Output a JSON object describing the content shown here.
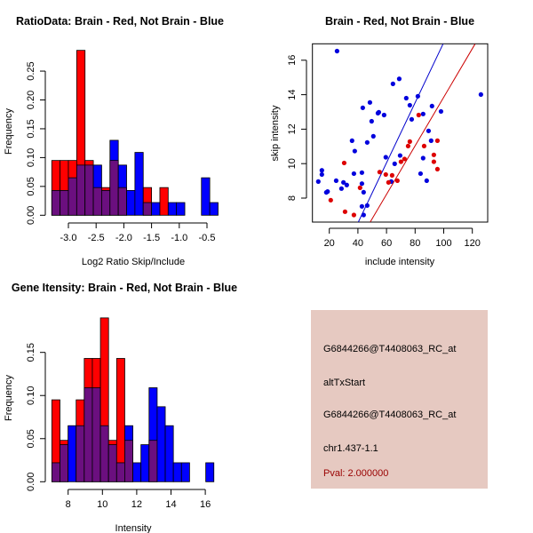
{
  "colors": {
    "red": "#ff0000",
    "blue": "#0000ff",
    "overlap": "#6b0f7f",
    "blue_line": "#0000cc",
    "red_line": "#cc0000",
    "blue_point": "#0000dd",
    "red_point": "#dd0000",
    "info_bg": "#e6c9c1",
    "pval": "#990000"
  },
  "chart_data": [
    {
      "type": "bar",
      "subtype": "overlaid-histogram",
      "title": "RatioData: Brain - Red, Not Brain - Blue",
      "xlabel": "Log2 Ratio Skip/Include",
      "ylabel": "Frequency",
      "bin_start": -3.3,
      "bin_width": 0.15,
      "xticks": [
        -3.0,
        -2.5,
        -2.0,
        -1.5,
        -1.0,
        -0.5
      ],
      "xtick_labels": [
        "-3.0",
        "-2.5",
        "-2.0",
        "-1.5",
        "-1.0",
        "-0.5"
      ],
      "yticks": [
        0,
        0.05,
        0.1,
        0.15,
        0.2,
        0.25
      ],
      "ytick_labels": [
        "0.00",
        "0.05",
        "0.10",
        "0.15",
        "0.20",
        "0.25"
      ],
      "series": [
        {
          "name": "Brain",
          "color": "red",
          "values": [
            0.095,
            0.095,
            0.095,
            0.286,
            0.095,
            0.048,
            0.048,
            0.095,
            0.048,
            0,
            0,
            0.048,
            0,
            0.048,
            0,
            0,
            0,
            0,
            0,
            0
          ]
        },
        {
          "name": "Not Brain",
          "color": "blue",
          "values": [
            0.043,
            0.043,
            0.065,
            0.087,
            0.087,
            0.087,
            0.043,
            0.13,
            0.087,
            0.043,
            0.109,
            0.022,
            0.022,
            0,
            0.022,
            0.022,
            0,
            0,
            0.065,
            0.022
          ]
        }
      ]
    },
    {
      "type": "scatter",
      "title": "Brain - Red, Not Brain - Blue",
      "xlabel": "include intensity",
      "ylabel": "skip intensity",
      "xlim": [
        8.2,
        131
      ],
      "ylim": [
        6.6,
        16.95
      ],
      "xticks": [
        20,
        40,
        60,
        80,
        100,
        120
      ],
      "xtick_labels": [
        "20",
        "40",
        "60",
        "80",
        "100",
        "120"
      ],
      "yticks": [
        8,
        10,
        12,
        14,
        16
      ],
      "ytick_labels": [
        "8",
        "10",
        "12",
        "14",
        "16"
      ],
      "series": [
        {
          "name": "Not Brain",
          "color": "blue",
          "points": [
            [
              12.3,
              8.96
            ],
            [
              14.8,
              9.61
            ],
            [
              14.8,
              9.37
            ],
            [
              17.9,
              8.33
            ],
            [
              18.8,
              8.38
            ],
            [
              25.4,
              16.53
            ],
            [
              24.8,
              9.01
            ],
            [
              28.5,
              8.55
            ],
            [
              29.9,
              8.91
            ],
            [
              32.2,
              8.76
            ],
            [
              35.9,
              11.33
            ],
            [
              37.8,
              10.73
            ],
            [
              37.2,
              9.42
            ],
            [
              42.8,
              9.48
            ],
            [
              42.8,
              8.84
            ],
            [
              42.8,
              7.52
            ],
            [
              43.4,
              13.24
            ],
            [
              44.0,
              8.34
            ],
            [
              44.0,
              7.02
            ],
            [
              46.5,
              11.23
            ],
            [
              46.5,
              7.57
            ],
            [
              48.4,
              13.55
            ],
            [
              49.6,
              12.46
            ],
            [
              50.8,
              11.59
            ],
            [
              54.0,
              12.93
            ],
            [
              54.6,
              12.98
            ],
            [
              58.3,
              12.82
            ],
            [
              59.5,
              10.37
            ],
            [
              64.5,
              14.63
            ],
            [
              65.7,
              9.99
            ],
            [
              68.9,
              14.92
            ],
            [
              69.5,
              10.47
            ],
            [
              63.3,
              8.96
            ],
            [
              73.8,
              13.8
            ],
            [
              76.3,
              13.39
            ],
            [
              77.6,
              12.57
            ],
            [
              81.9,
              13.91
            ],
            [
              85.6,
              12.88
            ],
            [
              85.6,
              10.32
            ],
            [
              83.8,
              9.42
            ],
            [
              89.4,
              11.9
            ],
            [
              88.1,
              9.01
            ],
            [
              91.8,
              13.34
            ],
            [
              91.2,
              11.33
            ],
            [
              98.1,
              13.03
            ],
            [
              126.0,
              14.01
            ]
          ],
          "fit_line": [
            [
              40.3,
              6.61
            ],
            [
              99.5,
              16.94
            ]
          ]
        },
        {
          "name": "Brain",
          "color": "red",
          "points": [
            [
              21.0,
              7.88
            ],
            [
              30.4,
              10.04
            ],
            [
              31.0,
              7.21
            ],
            [
              37.2,
              7.02
            ],
            [
              41.5,
              8.6
            ],
            [
              55.2,
              9.51
            ],
            [
              59.5,
              9.37
            ],
            [
              61.4,
              8.91
            ],
            [
              63.9,
              9.32
            ],
            [
              67.6,
              9.01
            ],
            [
              70.1,
              10.11
            ],
            [
              72.6,
              10.27
            ],
            [
              75.1,
              11.02
            ],
            [
              76.3,
              11.28
            ],
            [
              82.5,
              12.82
            ],
            [
              86.3,
              11.02
            ],
            [
              93.1,
              10.51
            ],
            [
              93.1,
              10.11
            ],
            [
              95.6,
              11.33
            ],
            [
              95.6,
              9.68
            ]
          ],
          "fit_line": [
            [
              48.6,
              6.61
            ],
            [
              121.9,
              16.94
            ]
          ]
        }
      ]
    },
    {
      "type": "bar",
      "subtype": "overlaid-histogram",
      "title": "Gene Itensity: Brain - Red, Not Brain - Blue",
      "xlabel": "Intensity",
      "ylabel": "Frequency",
      "bin_start": 7.05,
      "bin_width": 0.4725,
      "xticks": [
        8,
        10,
        12,
        14,
        16
      ],
      "xtick_labels": [
        "8",
        "10",
        "12",
        "14",
        "16"
      ],
      "yticks": [
        0,
        0.05,
        0.1,
        0.15
      ],
      "ytick_labels": [
        "0.00",
        "0.05",
        "0.10",
        "0.15"
      ],
      "series": [
        {
          "name": "Brain",
          "color": "red",
          "values": [
            0.095,
            0.048,
            0,
            0.095,
            0.143,
            0.143,
            0.19,
            0.048,
            0.143,
            0.048,
            0,
            0,
            0.048,
            0,
            0,
            0,
            0,
            0,
            0,
            0
          ]
        },
        {
          "name": "Not Brain",
          "color": "blue",
          "values": [
            0.022,
            0.043,
            0.065,
            0.065,
            0.109,
            0.109,
            0.065,
            0.043,
            0.022,
            0.065,
            0.022,
            0.043,
            0.109,
            0.087,
            0.065,
            0.022,
            0.022,
            0,
            0,
            0.022
          ]
        }
      ]
    }
  ],
  "info_panel": {
    "line1": "G6844266@T4408063_RC_at",
    "line2": "altTxStart",
    "line3": "G6844266@T4408063_RC_at",
    "line4": "chr1.437-1.1",
    "pval": "Pval: 2.000000"
  }
}
